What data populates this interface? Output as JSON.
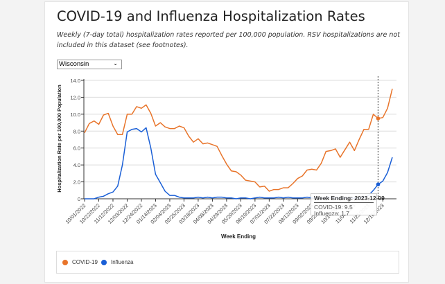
{
  "header": {
    "title": "COVID-19 and Influenza Hospitalization Rates",
    "subtitle": "Weekly (7-day total) hospitalization rates reported per 100,000 population. RSV hospitalizations are not included in this dataset (see footnotes)."
  },
  "filter": {
    "selected": "Wisconsin"
  },
  "tooltip": {
    "title": "Week Ending: 2023-12-09",
    "rows": [
      "COVID-19: 9.5",
      "Influenza: 1.7"
    ]
  },
  "chart_data": {
    "type": "line",
    "title": "COVID-19 and Influenza Hospitalization Rates",
    "xlabel": "Week Ending",
    "ylabel": "Hospitalization Rate per 100,000 Population",
    "ylim": [
      0,
      14
    ],
    "yticks": [
      "0",
      "2.0",
      "4.0",
      "6.0",
      "8.0",
      "10.0",
      "12.0",
      "14.0"
    ],
    "ytick_values": [
      0,
      2,
      4,
      6,
      8,
      10,
      12,
      14
    ],
    "grid": true,
    "legend_position": "bottom",
    "x_start": "10/01/2022",
    "x_interval": "weekly",
    "xticks": [
      "10/01/2022",
      "10/22/2022",
      "11/12/2022",
      "12/03/2022",
      "12/24/2022",
      "01/14/2023",
      "02/04/2023",
      "02/25/2023",
      "03/18/2023",
      "04/08/2023",
      "04/29/2023",
      "05/20/2023",
      "06/10/2023",
      "07/01/2023",
      "07/22/2023",
      "08/12/2023",
      "09/02/2023",
      "09/23/2023",
      "10/14/2023",
      "11/04/2023",
      "11/25/2023",
      "12/16/2023"
    ],
    "xtick_every_weeks": 3,
    "highlight_index": 62,
    "series": [
      {
        "name": "COVID-19",
        "color": "#e8742a",
        "values": [
          7.8,
          8.9,
          9.2,
          8.8,
          9.9,
          10.1,
          8.6,
          7.6,
          7.6,
          10.0,
          10.0,
          10.9,
          10.7,
          11.1,
          10.1,
          8.6,
          9.0,
          8.5,
          8.3,
          8.3,
          8.6,
          8.4,
          7.4,
          6.7,
          7.1,
          6.5,
          6.6,
          6.4,
          6.2,
          5.1,
          4.1,
          3.3,
          3.2,
          2.8,
          2.2,
          2.1,
          2.0,
          1.4,
          1.5,
          0.9,
          1.1,
          1.1,
          1.3,
          1.3,
          1.8,
          2.4,
          2.7,
          3.4,
          3.5,
          3.4,
          4.2,
          5.6,
          5.7,
          5.9,
          4.9,
          5.8,
          6.7,
          5.7,
          7.0,
          8.2,
          8.2,
          10.0,
          9.5,
          9.6,
          10.7,
          13.0
        ]
      },
      {
        "name": "Influenza",
        "color": "#1a5fd6",
        "values": [
          0,
          0,
          0,
          0.2,
          0.3,
          0.6,
          0.8,
          1.5,
          4.0,
          7.9,
          8.2,
          8.3,
          7.9,
          8.4,
          6.0,
          2.9,
          1.9,
          0.9,
          0.4,
          0.4,
          0.2,
          0.1,
          0.1,
          0.1,
          0.2,
          0.1,
          0.2,
          0.1,
          0.2,
          0.2,
          0.1,
          0.1,
          0.0,
          0.1,
          0.1,
          0.0,
          0.1,
          0.2,
          0.1,
          0.1,
          0.1,
          0.2,
          0.1,
          0.2,
          0.1,
          0.1,
          0.1,
          0.2,
          0.1,
          0.1,
          0.1,
          0.1,
          0.2,
          0.1,
          0.1,
          0.1,
          0.1,
          0.1,
          0.1,
          0.2,
          0.4,
          1.0,
          1.7,
          2.1,
          3.1,
          4.9
        ]
      }
    ]
  },
  "legend": {
    "items": [
      {
        "label": "COVID-19",
        "color": "#e8742a"
      },
      {
        "label": "Influenza",
        "color": "#1a5fd6"
      }
    ]
  }
}
